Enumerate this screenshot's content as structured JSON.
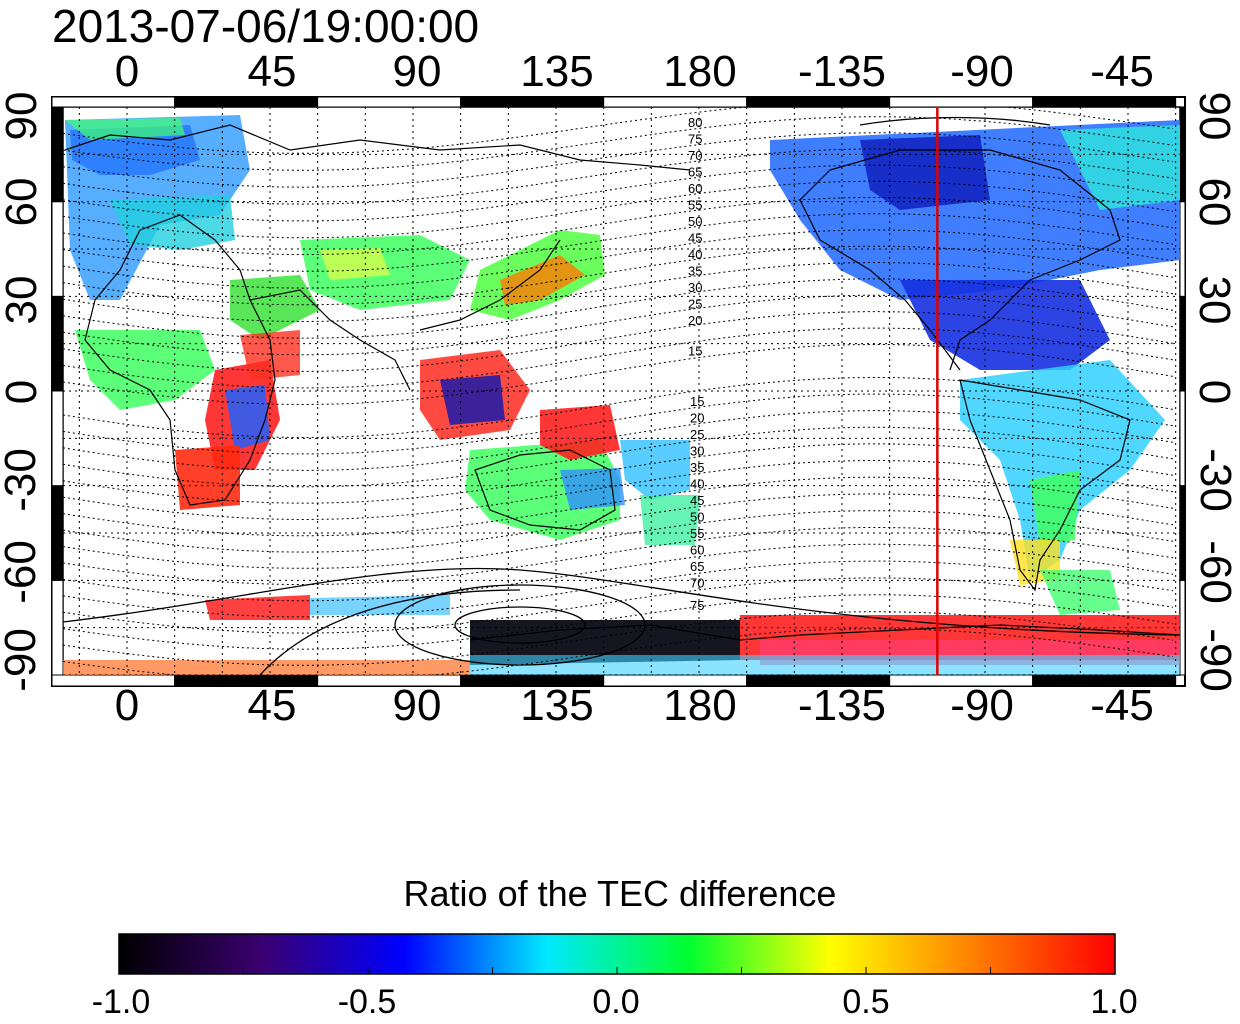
{
  "title": "2013-07-06/19:00:00",
  "map": {
    "lon_ticks": [
      "0",
      "45",
      "90",
      "135",
      "180",
      "-135",
      "-90",
      "-45"
    ],
    "lat_ticks": [
      "90",
      "60",
      "30",
      "0",
      "-30",
      "-60",
      "-90"
    ],
    "marker_longitude": -105,
    "marker_color": "#e00000",
    "contour_labels_north": [
      "80",
      "75",
      "70",
      "65",
      "60",
      "55",
      "50",
      "45",
      "40",
      "35",
      "30",
      "25",
      "20",
      "15"
    ],
    "contour_labels_south": [
      "15",
      "20",
      "25",
      "30",
      "35",
      "40",
      "45",
      "50",
      "55",
      "60",
      "65",
      "70",
      "75"
    ]
  },
  "colorbar": {
    "title": "Ratio of the TEC difference",
    "labels": [
      "-1.0",
      "-0.5",
      "0.0",
      "0.5",
      "1.0"
    ],
    "range": [
      -1.0,
      1.0
    ],
    "stops": [
      "#000000",
      "#3a0070",
      "#0000ff",
      "#00e8ff",
      "#00ff30",
      "#ffff00",
      "#ff8000",
      "#ff0000"
    ]
  }
}
